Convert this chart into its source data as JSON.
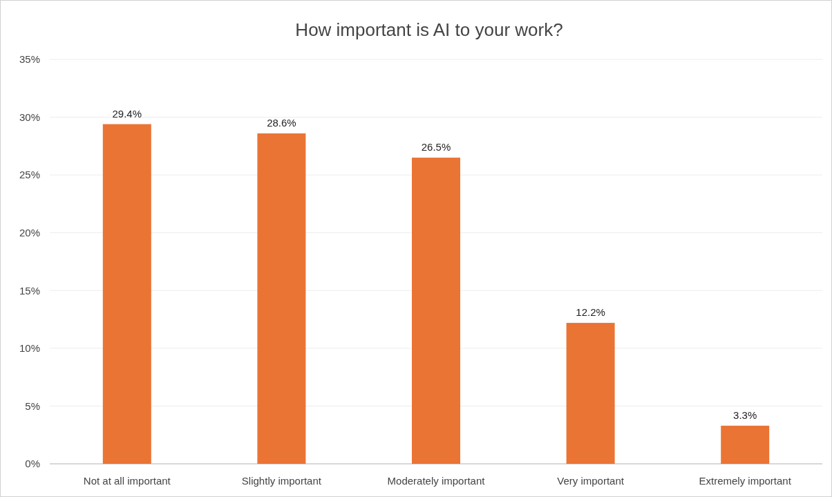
{
  "chart_data": {
    "type": "bar",
    "title": "How important is AI to your work?",
    "categories": [
      "Not at all important",
      "Slightly important",
      "Moderately important",
      "Very important",
      "Extremely important"
    ],
    "values": [
      29.4,
      28.6,
      26.5,
      12.2,
      3.3
    ],
    "value_labels": [
      "29.4%",
      "28.6%",
      "26.5%",
      "12.2%",
      "3.3%"
    ],
    "color": "#ea7434",
    "ylim": [
      0,
      35
    ],
    "yticks": [
      {
        "value": 0,
        "label": "0%"
      },
      {
        "value": 5,
        "label": "5%"
      },
      {
        "value": 10,
        "label": "10%"
      },
      {
        "value": 15,
        "label": "15%"
      },
      {
        "value": 20,
        "label": "20%"
      },
      {
        "value": 25,
        "label": "25%"
      },
      {
        "value": 30,
        "label": "30%"
      },
      {
        "value": 35,
        "label": "35%"
      }
    ],
    "grid": true
  }
}
